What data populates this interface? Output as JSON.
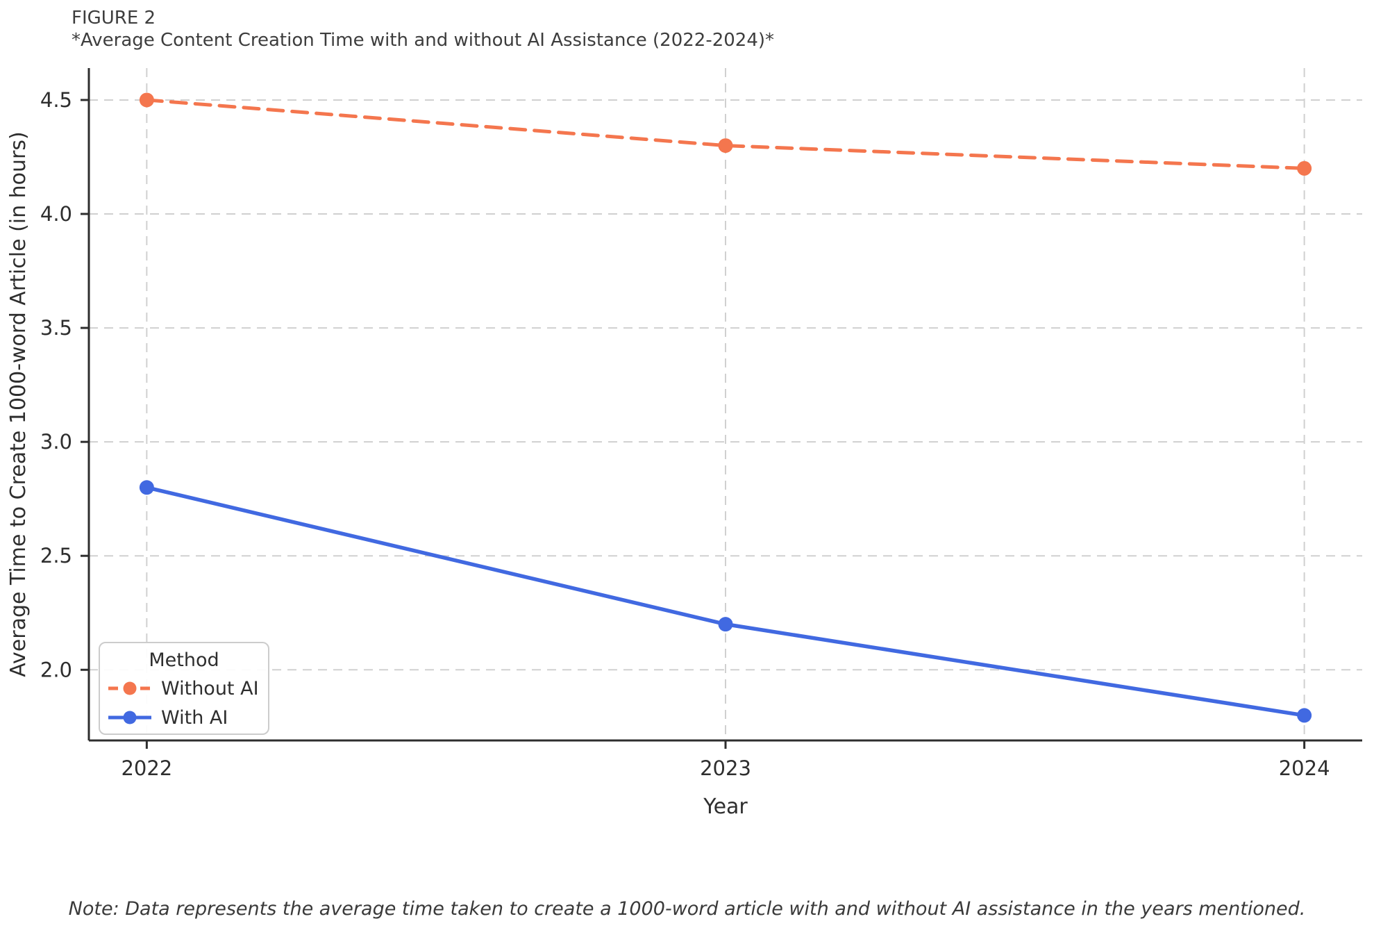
{
  "figure": {
    "label": "FIGURE 2",
    "title": "*Average Content Creation Time with and without AI Assistance (2022-2024)*",
    "note": "Note: Data represents the average time taken to create a 1000-word article with and without AI assistance in the years mentioned."
  },
  "chart_data": {
    "type": "line",
    "x": [
      2022,
      2023,
      2024
    ],
    "x_tick_labels": [
      "2022",
      "2023",
      "2024"
    ],
    "series": [
      {
        "name": "Without AI",
        "values": [
          4.5,
          4.3,
          4.2
        ],
        "color": "#f4764e",
        "line_style": "dashed",
        "marker": "circle"
      },
      {
        "name": "With AI",
        "values": [
          2.8,
          2.2,
          1.8
        ],
        "color": "#4169e1",
        "line_style": "solid",
        "marker": "circle"
      }
    ],
    "xlabel": "Year",
    "ylabel": "Average Time to Create 1000-word Article (in hours)",
    "y_ticks": [
      2.0,
      2.5,
      3.0,
      3.5,
      4.0,
      4.5
    ],
    "y_tick_labels": [
      "2.0",
      "2.5",
      "3.0",
      "3.5",
      "4.0",
      "4.5"
    ],
    "xlim": [
      2021.9,
      2024.1
    ],
    "ylim": [
      1.69,
      4.64
    ],
    "grid": true,
    "legend": {
      "title": "Method",
      "position": "lower left"
    }
  },
  "style": {
    "grid_color": "#d0d0d0",
    "spine_color": "#2e2e2e",
    "tick_text_color": "#2e2e2e",
    "background": "#ffffff"
  }
}
